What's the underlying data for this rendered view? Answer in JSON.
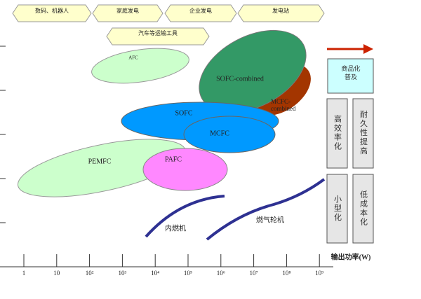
{
  "markets": [
    "数码、机器人",
    "家庭发电",
    "企业发电",
    "发电站"
  ],
  "transport": "汽车等运输工具",
  "fuel_cells": {
    "afc": "AFC",
    "sofc_combined": "SOFC-combined",
    "mcfc_combined": "MCFC-combined",
    "sofc": "SOFC",
    "mcfc": "MCFC",
    "pemfc": "PEMFC",
    "pafc": "PAFC"
  },
  "engines": [
    "内燃机",
    "燃气轮机"
  ],
  "power_axis": {
    "label": "输出功率(W)",
    "ticks": [
      "1",
      "10",
      "10²",
      "10³",
      "10⁴",
      "10⁵",
      "10⁶",
      "10⁷",
      "10⁸",
      "10⁹"
    ]
  },
  "trend": {
    "goal": "商品化普及",
    "improvements": [
      "高效率化",
      "耐久性提高",
      "小型化",
      "低成本化"
    ]
  }
}
